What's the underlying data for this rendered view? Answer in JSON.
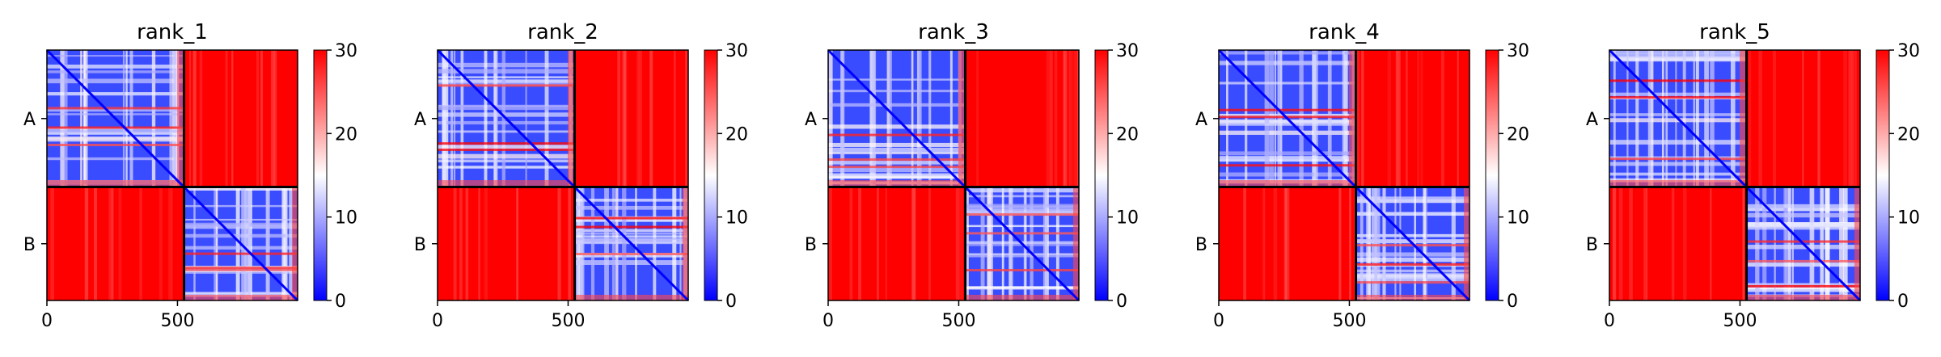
{
  "chart_data": {
    "type": "heatmap",
    "colormap": {
      "name": "bwr",
      "low": "#0000ff",
      "mid": "#ffffff",
      "high": "#ff0000",
      "range": [
        0,
        30
      ],
      "ticks": [
        "0",
        "10",
        "20",
        "30"
      ]
    },
    "x_axis": {
      "range": [
        0,
        960
      ],
      "ticks": [
        {
          "value": 0,
          "label": "0"
        },
        {
          "value": 500,
          "label": "500"
        }
      ]
    },
    "chains": [
      {
        "label": "A",
        "start": 0,
        "end": 525
      },
      {
        "label": "B",
        "start": 525,
        "end": 960
      }
    ],
    "panels": [
      {
        "title": "rank_1"
      },
      {
        "title": "rank_2"
      },
      {
        "title": "rank_3"
      },
      {
        "title": "rank_4"
      },
      {
        "title": "rank_5"
      }
    ]
  }
}
